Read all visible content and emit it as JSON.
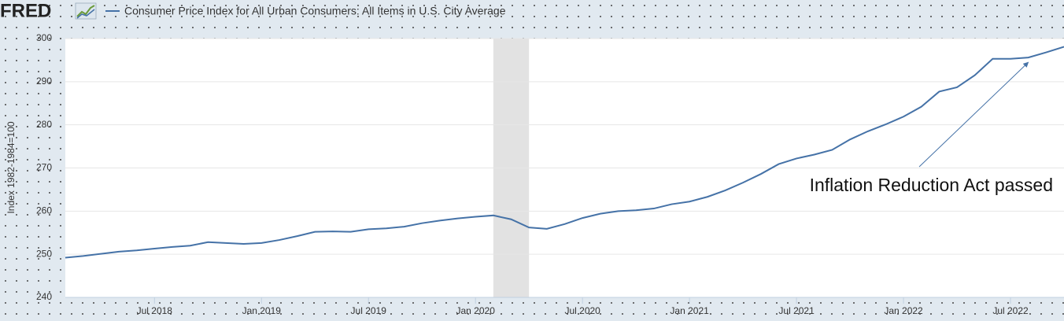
{
  "chart_data": {
    "type": "line",
    "logo": "FRED",
    "y_label": "Index 1982-1984=100",
    "x": [
      "2018-02",
      "2018-03",
      "2018-04",
      "2018-05",
      "2018-06",
      "2018-07",
      "2018-08",
      "2018-09",
      "2018-10",
      "2018-11",
      "2018-12",
      "2019-01",
      "2019-02",
      "2019-03",
      "2019-04",
      "2019-05",
      "2019-06",
      "2019-07",
      "2019-08",
      "2019-09",
      "2019-10",
      "2019-11",
      "2019-12",
      "2020-01",
      "2020-02",
      "2020-03",
      "2020-04",
      "2020-05",
      "2020-06",
      "2020-07",
      "2020-08",
      "2020-09",
      "2020-10",
      "2020-11",
      "2020-12",
      "2021-01",
      "2021-02",
      "2021-03",
      "2021-04",
      "2021-05",
      "2021-06",
      "2021-07",
      "2021-08",
      "2021-09",
      "2021-10",
      "2021-11",
      "2021-12",
      "2022-01",
      "2022-02",
      "2022-03",
      "2022-04",
      "2022-05",
      "2022-06",
      "2022-07",
      "2022-08",
      "2022-09",
      "2022-10"
    ],
    "series": [
      {
        "name": "Consumer Price Index for All Urban Consumers: All Items in U.S. City Average",
        "color": "#4572a7",
        "values": [
          249.2,
          249.6,
          250.1,
          250.6,
          250.9,
          251.3,
          251.7,
          252.0,
          252.8,
          252.6,
          252.4,
          252.6,
          253.3,
          254.2,
          255.2,
          255.3,
          255.2,
          255.8,
          256.0,
          256.4,
          257.2,
          257.8,
          258.3,
          258.7,
          259.0,
          258.1,
          256.2,
          255.9,
          257.0,
          258.4,
          259.4,
          260.0,
          260.2,
          260.6,
          261.6,
          262.2,
          263.3,
          264.8,
          266.6,
          268.6,
          270.9,
          272.2,
          273.1,
          274.2,
          276.6,
          278.5,
          280.1,
          281.9,
          284.2,
          287.7,
          288.7,
          291.5,
          295.3,
          295.3,
          295.6,
          296.8,
          298.1
        ]
      }
    ],
    "recession": [
      "2020-02",
      "2020-04"
    ],
    "xlim": [
      "2018-02",
      "2022-10"
    ],
    "xticks": [
      {
        "value": "2018-07",
        "label": "Jul 2018"
      },
      {
        "value": "2019-01",
        "label": "Jan 2019"
      },
      {
        "value": "2019-07",
        "label": "Jul 2019"
      },
      {
        "value": "2020-01",
        "label": "Jan 2020"
      },
      {
        "value": "2020-07",
        "label": "Jul 2020"
      },
      {
        "value": "2021-01",
        "label": "Jan 2021"
      },
      {
        "value": "2021-07",
        "label": "Jul 2021"
      },
      {
        "value": "2022-01",
        "label": "Jan 2022"
      },
      {
        "value": "2022-07",
        "label": "Jul 2022"
      }
    ],
    "ylim": [
      240,
      300
    ],
    "yticks": [
      240,
      250,
      260,
      270,
      280,
      290,
      300
    ],
    "grid": true,
    "annotation": {
      "text": "Inflation Reduction Act passed",
      "x": "2022-08"
    }
  }
}
